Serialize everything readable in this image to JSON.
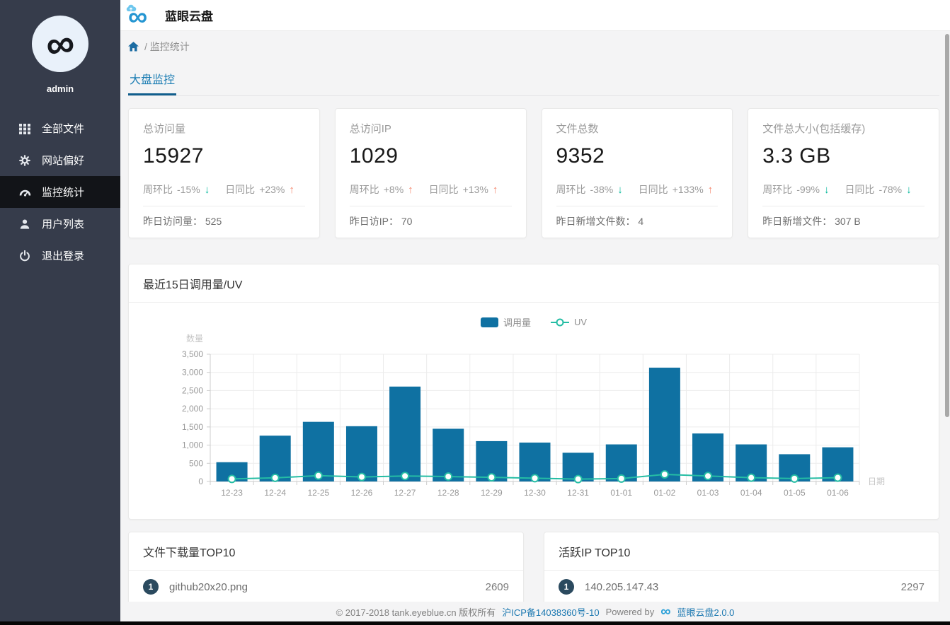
{
  "app": {
    "title": "蓝眼云盘"
  },
  "sidebar": {
    "username": "admin",
    "items": [
      {
        "label": "全部文件",
        "icon": "grid-icon",
        "active": false
      },
      {
        "label": "网站偏好",
        "icon": "gear-icon",
        "active": false
      },
      {
        "label": "监控统计",
        "icon": "dashboard-icon",
        "active": true
      },
      {
        "label": "用户列表",
        "icon": "user-icon",
        "active": false
      },
      {
        "label": "退出登录",
        "icon": "power-icon",
        "active": false
      }
    ]
  },
  "breadcrumb": {
    "path": "/ 监控统计"
  },
  "tabs": [
    {
      "label": "大盘监控",
      "active": true
    }
  ],
  "stat_cards": [
    {
      "title": "总访问量",
      "value": "15927",
      "wow_label": "周环比",
      "wow_value": "-15%",
      "wow_dir": "down",
      "dod_label": "日同比",
      "dod_value": "+23%",
      "dod_dir": "up",
      "footer_label": "昨日访问量：",
      "footer_value": "525"
    },
    {
      "title": "总访问IP",
      "value": "1029",
      "wow_label": "周环比",
      "wow_value": "+8%",
      "wow_dir": "up",
      "dod_label": "日同比",
      "dod_value": "+13%",
      "dod_dir": "up",
      "footer_label": "昨日访IP：",
      "footer_value": "70"
    },
    {
      "title": "文件总数",
      "value": "9352",
      "wow_label": "周环比",
      "wow_value": "-38%",
      "wow_dir": "down",
      "dod_label": "日同比",
      "dod_value": "+133%",
      "dod_dir": "up",
      "footer_label": "昨日新增文件数：",
      "footer_value": "4"
    },
    {
      "title": "文件总大小(包括缓存)",
      "value": "3.3 GB",
      "wow_label": "周环比",
      "wow_value": "-99%",
      "wow_dir": "down",
      "dod_label": "日同比",
      "dod_value": "-78%",
      "dod_dir": "down",
      "footer_label": "昨日新增文件：",
      "footer_value": "307 B"
    }
  ],
  "chart_card": {
    "title": "最近15日调用量/UV"
  },
  "chart_data": {
    "type": "bar",
    "title": "最近15日调用量/UV",
    "categories": [
      "12-23",
      "12-24",
      "12-25",
      "12-26",
      "12-27",
      "12-28",
      "12-29",
      "12-30",
      "12-31",
      "01-01",
      "01-02",
      "01-03",
      "01-04",
      "01-05",
      "01-06"
    ],
    "series": [
      {
        "name": "调用量",
        "type": "bar",
        "color": "#0f71a2",
        "values": [
          530,
          1260,
          1640,
          1520,
          2610,
          1450,
          1110,
          1070,
          790,
          1020,
          3130,
          1320,
          1020,
          750,
          940
        ]
      },
      {
        "name": "UV",
        "type": "line",
        "color": "#25bda4",
        "values": [
          70,
          100,
          160,
          125,
          150,
          135,
          115,
          90,
          65,
          80,
          195,
          150,
          105,
          80,
          105
        ]
      }
    ],
    "xlabel": "日期",
    "ylabel": "数量",
    "ylim": [
      0,
      3500
    ],
    "ytick_step": 500,
    "grid": true,
    "legend_position": "top-center"
  },
  "top_lists": [
    {
      "title": "文件下载量TOP10",
      "rows": [
        {
          "rank": "1",
          "name": "github20x20.png",
          "value": "2609"
        }
      ]
    },
    {
      "title": "活跃IP TOP10",
      "rows": [
        {
          "rank": "1",
          "name": "140.205.147.43",
          "value": "2297"
        }
      ]
    }
  ],
  "footer": {
    "copyright": "© 2017-2018 tank.eyeblue.cn 版权所有",
    "icp": "沪ICP备14038360号-10",
    "powered_by": "Powered by",
    "product": "蓝眼云盘2.0.0"
  },
  "colors": {
    "sidebar_bg": "#363c4b",
    "sidebar_active_bg": "#121418",
    "accent_blue": "#1b7db3",
    "bar_blue": "#0f71a2",
    "line_teal": "#25bda4",
    "arrow_up": "#f5846a",
    "arrow_down": "#00b79a",
    "badge_navy": "#2b4a5f",
    "page_bg": "#f4f4f5"
  }
}
